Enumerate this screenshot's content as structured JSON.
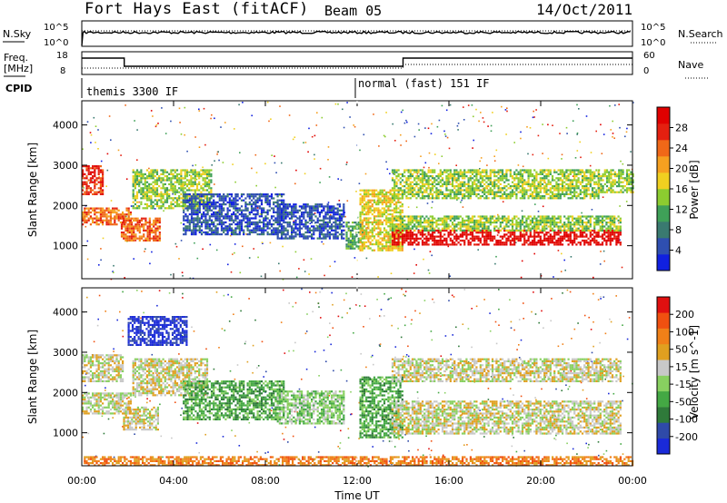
{
  "header": {
    "station": "Fort Hays East (fitACF)",
    "beam": "Beam 05",
    "date": "14/Oct/2011"
  },
  "noise_panel": {
    "left_label": "N.Sky",
    "right_label": "N.Search",
    "tick_high": "10^5",
    "tick_low": "10^0"
  },
  "freq_panel": {
    "left_label_1": "Freq.",
    "left_label_2": "[MHz]",
    "right_label": "Nave",
    "left_ticks": [
      "18",
      "8"
    ],
    "right_ticks": [
      "60",
      "0"
    ]
  },
  "cpid": {
    "label": "CPID",
    "modes": [
      {
        "name": "themis 3300 IF",
        "start_hour": 0
      },
      {
        "name": "normal (fast) 151 IF",
        "start_hour": 12
      }
    ]
  },
  "x_axis": {
    "title": "Time UT",
    "ticks": [
      "00:00",
      "04:00",
      "08:00",
      "12:00",
      "16:00",
      "20:00",
      "00:00"
    ],
    "range_hours": [
      0,
      24
    ]
  },
  "chart_data": [
    {
      "type": "heatmap",
      "title": "Power",
      "ylabel": "Slant Range [km]",
      "ylim": [
        180,
        4600
      ],
      "y_ticks": [
        1000,
        2000,
        3000,
        4000
      ],
      "colorbar": {
        "title": "Power [dB]",
        "tick_labels": [
          "4",
          "8",
          "12",
          "16",
          "20",
          "24",
          "28"
        ],
        "colors": [
          "#1020e0",
          "#2f4fb0",
          "#3a7a70",
          "#3fa058",
          "#8ccc30",
          "#f0d020",
          "#f6a020",
          "#f06818",
          "#e42010",
          "#e00000"
        ]
      },
      "regions": [
        {
          "t0": 0.0,
          "t1": 0.9,
          "r0": 2300,
          "r1": 3000,
          "level": 8
        },
        {
          "t0": 0.0,
          "t1": 2.1,
          "r0": 1550,
          "r1": 1950,
          "level": 7
        },
        {
          "t0": 1.7,
          "t1": 3.4,
          "r0": 1150,
          "r1": 1700,
          "level": 7
        },
        {
          "t0": 2.2,
          "t1": 5.6,
          "r0": 1950,
          "r1": 2900,
          "level": 4
        },
        {
          "t0": 4.4,
          "t1": 8.8,
          "r0": 1300,
          "r1": 2300,
          "level": 1
        },
        {
          "t0": 8.5,
          "t1": 11.4,
          "r0": 1200,
          "r1": 2050,
          "level": 1
        },
        {
          "t0": 11.5,
          "t1": 12.2,
          "r0": 950,
          "r1": 1600,
          "level": 3
        },
        {
          "t0": 12.1,
          "t1": 14.0,
          "r0": 900,
          "r1": 2400,
          "level": 5
        },
        {
          "t0": 13.5,
          "t1": 23.5,
          "r0": 1050,
          "r1": 1400,
          "level": 9
        },
        {
          "t0": 13.5,
          "t1": 23.5,
          "r0": 1400,
          "r1": 1750,
          "level": 4
        },
        {
          "t0": 13.5,
          "t1": 22.5,
          "r0": 2200,
          "r1": 2900,
          "level": 4
        },
        {
          "t0": 22.5,
          "t1": 24.0,
          "r0": 2350,
          "r1": 2900,
          "level": 4
        }
      ]
    },
    {
      "type": "heatmap",
      "title": "Velocity",
      "ylabel": "Slant Range [km]",
      "ylim": [
        180,
        4600
      ],
      "y_ticks": [
        1000,
        2000,
        3000,
        4000
      ],
      "colorbar": {
        "title": "Velocity [m s^-1]",
        "tick_labels": [
          "200",
          "100",
          "50",
          "15",
          "-15",
          "-50",
          "-100",
          "-200"
        ],
        "colors": [
          "#1a2ad8",
          "#2f4aa8",
          "#2f7a3a",
          "#44a844",
          "#88d060",
          "#c8c8c8",
          "#e0a020",
          "#f08018",
          "#f05010",
          "#e01010"
        ]
      },
      "regions": [
        {
          "t0": 0.0,
          "t1": 1.8,
          "r0": 2300,
          "r1": 2950,
          "level": 5
        },
        {
          "t0": 0.0,
          "t1": 2.1,
          "r0": 1500,
          "r1": 2000,
          "level": 5
        },
        {
          "t0": 1.8,
          "t1": 3.3,
          "r0": 1100,
          "r1": 1650,
          "level": 5
        },
        {
          "t0": 2.2,
          "t1": 5.5,
          "r0": 1950,
          "r1": 2850,
          "level": 5
        },
        {
          "t0": 2.0,
          "t1": 4.6,
          "r0": 3200,
          "r1": 3900,
          "level": 0
        },
        {
          "t0": 4.4,
          "t1": 8.8,
          "r0": 1350,
          "r1": 2300,
          "level": 3
        },
        {
          "t0": 8.5,
          "t1": 11.4,
          "r0": 1250,
          "r1": 2050,
          "level": 4
        },
        {
          "t0": 12.1,
          "t1": 14.0,
          "r0": 900,
          "r1": 2400,
          "level": 3
        },
        {
          "t0": 13.5,
          "t1": 23.5,
          "r0": 1000,
          "r1": 1800,
          "level": 5
        },
        {
          "t0": 13.5,
          "t1": 23.5,
          "r0": 2300,
          "r1": 2850,
          "level": 5
        },
        {
          "t0": 0.0,
          "t1": 24.0,
          "r0": 190,
          "r1": 420,
          "level": 7
        }
      ]
    }
  ]
}
